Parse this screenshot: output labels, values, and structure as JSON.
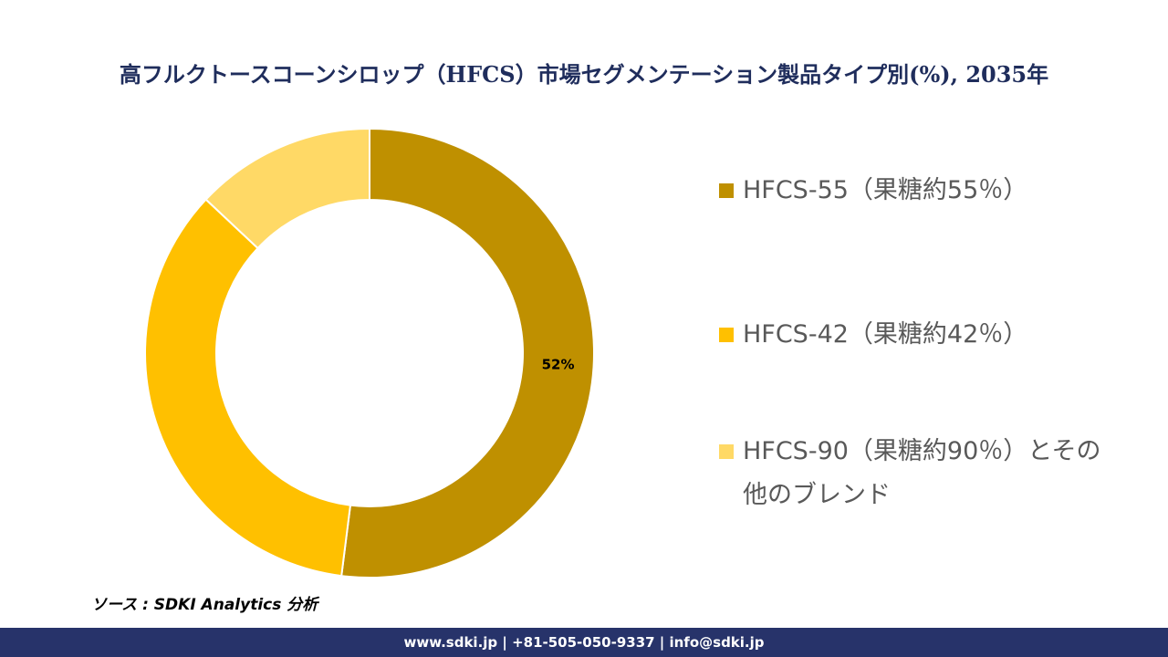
{
  "chart_data": {
    "type": "donut",
    "title": "高フルクトースコーンシロップ（HFCS）市場セグメンテーション製品タイプ別(%), 2035年",
    "categories": [
      "HFCS-55（果糖約55％）",
      "HFCS-42（果糖約42％）",
      "HFCS-90（果糖約90％）とその他のブレンド"
    ],
    "values": [
      52,
      35,
      13
    ],
    "value_labels": [
      "52%",
      null,
      null
    ],
    "colors": [
      "#bf9000",
      "#ffc000",
      "#ffd966"
    ],
    "legend": "right"
  },
  "source": "ソース : SDKI Analytics 分析",
  "footer": "www.sdki.jp | +81-505-050-9337 | info@sdki.jp"
}
